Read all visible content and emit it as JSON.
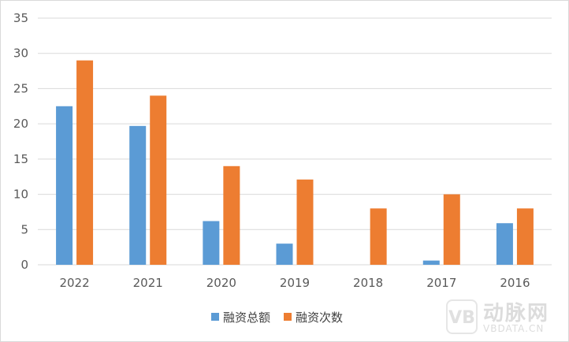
{
  "chart_data": {
    "type": "bar",
    "categories": [
      "2022",
      "2021",
      "2020",
      "2019",
      "2018",
      "2017",
      "2016"
    ],
    "series": [
      {
        "name": "融资总额",
        "color": "#5b9bd5",
        "values": [
          22.5,
          19.7,
          6.2,
          3.0,
          0,
          0.6,
          5.9
        ]
      },
      {
        "name": "融资次数",
        "color": "#ed7d31",
        "values": [
          29,
          24,
          14,
          12.1,
          8,
          10,
          8
        ]
      }
    ],
    "y_ticks": [
      "0",
      "5",
      "10",
      "15",
      "20",
      "25",
      "30",
      "35"
    ],
    "ylim": [
      0,
      35
    ],
    "grid": true,
    "legend_position": "bottom"
  },
  "watermark": {
    "logo_letter": "VB",
    "cn_text": "动脉网",
    "en_text": "VBDATA.CN"
  }
}
